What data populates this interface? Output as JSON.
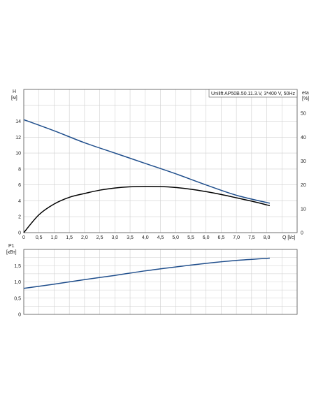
{
  "chart_data": [
    {
      "type": "line",
      "title": "Unilift AP50B.50.11.3.V, 3*400 V, 50Hz",
      "xlabel": "Q [l/c]",
      "ylabel_left_name": "H",
      "ylabel_left_unit": "[м]",
      "ylabel_right_name": "eta",
      "ylabel_right_unit": "[%]",
      "xlim": [
        0,
        9
      ],
      "ylim_left": [
        0,
        18
      ],
      "ylim_right": [
        0,
        60
      ],
      "x_ticks": [
        "0",
        "0,5",
        "1,0",
        "1,5",
        "2,0",
        "2,5",
        "3,0",
        "3,5",
        "4,0",
        "4,5",
        "5,0",
        "5,5",
        "6,0",
        "6,5",
        "7,0",
        "7,5",
        "8,0"
      ],
      "y_ticks_left": [
        "0",
        "2",
        "4",
        "6",
        "8",
        "10",
        "12",
        "14"
      ],
      "y_ticks_right": [
        "0",
        "10",
        "20",
        "30",
        "40",
        "50"
      ],
      "grid": true,
      "series": [
        {
          "axis": "left",
          "color": "#1f4e8c",
          "x": [
            0,
            1,
            2,
            3,
            4,
            5,
            6,
            7,
            8.1
          ],
          "y": [
            14.2,
            12.8,
            11.3,
            10.0,
            8.7,
            7.4,
            6.0,
            4.7,
            3.7
          ]
        },
        {
          "axis": "right",
          "color": "#000000",
          "x": [
            0,
            0.5,
            1,
            1.5,
            2,
            2.5,
            3,
            3.5,
            4,
            4.5,
            5,
            5.5,
            6,
            6.5,
            7,
            7.5,
            8.1
          ],
          "y": [
            0,
            7.5,
            12.0,
            14.8,
            16.4,
            17.8,
            18.7,
            19.2,
            19.4,
            19.3,
            18.9,
            18.2,
            17.2,
            16.0,
            14.6,
            13.2,
            11.3
          ]
        }
      ]
    },
    {
      "type": "line",
      "xlabel": "",
      "ylabel_name": "P1",
      "ylabel_unit": "[кВт]",
      "xlim": [
        0,
        9
      ],
      "ylim": [
        0,
        2.0
      ],
      "y_ticks": [
        "0",
        "0,5",
        "1,0",
        "1,5"
      ],
      "grid": true,
      "series": [
        {
          "color": "#1f4e8c",
          "x": [
            0,
            1,
            2,
            3,
            4,
            5,
            6,
            7,
            8.1
          ],
          "y": [
            0.8,
            0.93,
            1.07,
            1.2,
            1.34,
            1.46,
            1.57,
            1.66,
            1.73
          ]
        }
      ]
    }
  ]
}
